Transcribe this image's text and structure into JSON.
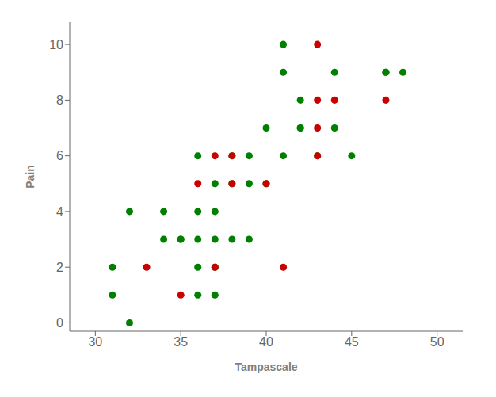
{
  "chart_data": {
    "type": "scatter",
    "xlabel": "Tampascale",
    "ylabel": "Pain",
    "xlim": [
      28.5,
      51.5
    ],
    "ylim": [
      -0.3,
      10.8
    ],
    "xticks": [
      30,
      35,
      40,
      45,
      50
    ],
    "yticks": [
      0,
      2,
      4,
      6,
      8,
      10
    ],
    "grid": false,
    "series": [
      {
        "color": "#008000",
        "marker": "circle",
        "x": [
          31,
          31,
          32,
          32,
          34,
          34,
          35,
          35,
          36,
          36,
          36,
          36,
          36,
          37,
          37,
          37,
          37,
          37,
          38,
          38,
          38,
          39,
          39,
          39,
          40,
          40,
          41,
          41,
          41,
          42,
          42,
          42,
          43,
          44,
          44,
          45,
          47,
          47,
          48
        ],
        "values": [
          2,
          1,
          0,
          4,
          4,
          3,
          3,
          3,
          6,
          4,
          3,
          2,
          1,
          5,
          4,
          3,
          2,
          1,
          6,
          5,
          3,
          6,
          5,
          3,
          7,
          5,
          10,
          9,
          6,
          8,
          7,
          7,
          6,
          9,
          7,
          6,
          9,
          9,
          9
        ]
      },
      {
        "color": "#cc0000",
        "marker": "circle",
        "x": [
          33,
          35,
          36,
          37,
          37,
          38,
          38,
          40,
          41,
          43,
          43,
          43,
          43,
          44,
          47
        ],
        "values": [
          2,
          1,
          5,
          6,
          2,
          6,
          5,
          5,
          2,
          10,
          8,
          7,
          6,
          8,
          8
        ]
      }
    ]
  }
}
